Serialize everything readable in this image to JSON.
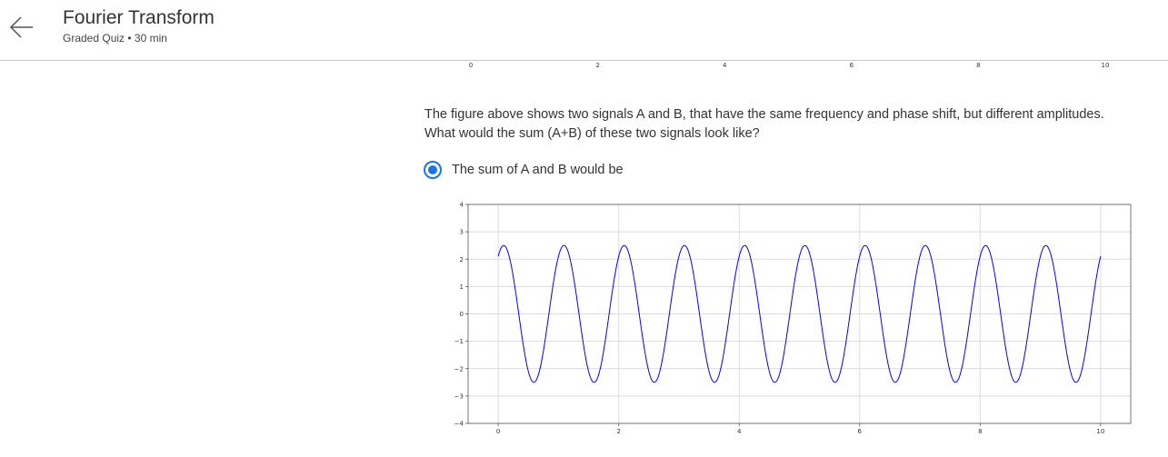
{
  "header": {
    "back_icon": "arrow-left-icon",
    "title": "Fourier Transform",
    "subtitle": "Graded Quiz • 30 min"
  },
  "top_axis": {
    "ticks": [
      "0",
      "2",
      "4",
      "6",
      "8",
      "10"
    ],
    "tick_values": [
      0,
      2,
      4,
      6,
      8,
      10
    ]
  },
  "question": {
    "line1": "The figure above shows two signals A and B, that have the same frequency and phase shift, but different amplitudes.",
    "line2": "What would the sum (A+B) of these two signals look like?"
  },
  "option": {
    "label": "The sum of A and B would be",
    "selected": true,
    "accent_color": "#1a73e8"
  },
  "chart_data": {
    "type": "line",
    "title": "",
    "xlabel": "",
    "ylabel": "",
    "xlim": [
      -0.5,
      10.5
    ],
    "ylim": [
      -4,
      4
    ],
    "xticks": [
      0,
      2,
      4,
      6,
      8,
      10
    ],
    "yticks": [
      4,
      3,
      2,
      1,
      0,
      -1,
      -2,
      -3,
      -4
    ],
    "ytick_labels": [
      "4",
      "3",
      "2",
      "1",
      "0",
      "−1",
      "−2",
      "−3",
      "−4"
    ],
    "grid": true,
    "series": [
      {
        "color": "#0000ff",
        "function": "y = 2.5 * sin(2*pi*x + 1)",
        "amplitude": 2.5,
        "frequency": 1,
        "phase": 1,
        "x_range": [
          0,
          10
        ]
      }
    ]
  }
}
